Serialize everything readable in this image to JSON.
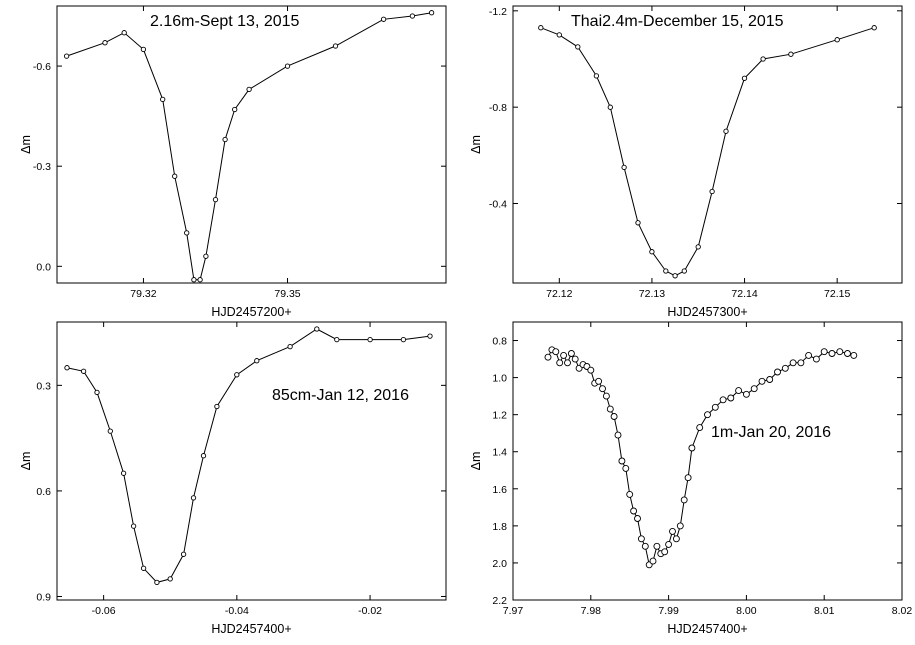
{
  "chart_data": [
    {
      "type": "scatter",
      "title": "",
      "annotation": "2.16m-Sept 13, 2015",
      "xlabel": "HJD2457200+",
      "ylabel": "Δm",
      "xlim": [
        79.302,
        79.383
      ],
      "ylim": [
        0.05,
        -0.78
      ],
      "y_inverted": true,
      "xticks": [
        79.32,
        79.35
      ],
      "xtick_labels": [
        "79.32",
        "79.35"
      ],
      "yticks": [
        0.0,
        -0.3,
        -0.6
      ],
      "ytick_labels": [
        "0.0",
        "-0.3",
        "-0.6"
      ],
      "grid": false,
      "x": [
        79.304,
        79.312,
        79.316,
        79.32,
        79.324,
        79.3265,
        79.329,
        79.3305,
        79.3318,
        79.333,
        79.335,
        79.337,
        79.339,
        79.342,
        79.35,
        79.36,
        79.37,
        79.376,
        79.38
      ],
      "y": [
        -0.63,
        -0.67,
        -0.7,
        -0.65,
        -0.5,
        -0.27,
        -0.1,
        0.04,
        0.04,
        -0.03,
        -0.2,
        -0.38,
        -0.47,
        -0.53,
        -0.6,
        -0.66,
        -0.74,
        -0.75,
        -0.76
      ]
    },
    {
      "type": "scatter",
      "title": "",
      "annotation": "Thai2.4m-December 15, 2015",
      "xlabel": "HJD2457300+",
      "ylabel": "Δm",
      "xlim": [
        72.115,
        72.157
      ],
      "ylim": [
        -0.07,
        -1.22
      ],
      "y_inverted": true,
      "xticks": [
        72.12,
        72.13,
        72.14,
        72.15
      ],
      "xtick_labels": [
        "72.12",
        "72.13",
        "72.14",
        "72.15"
      ],
      "yticks": [
        -1.2,
        -0.8,
        -0.4
      ],
      "ytick_labels": [
        "-1.2",
        "-0.8",
        "-0.4"
      ],
      "grid": false,
      "x": [
        72.118,
        72.12,
        72.122,
        72.124,
        72.1255,
        72.127,
        72.1285,
        72.13,
        72.1315,
        72.1325,
        72.1335,
        72.135,
        72.1365,
        72.138,
        72.14,
        72.142,
        72.145,
        72.15,
        72.154
      ],
      "y": [
        -1.13,
        -1.1,
        -1.05,
        -0.93,
        -0.8,
        -0.55,
        -0.32,
        -0.2,
        -0.12,
        -0.1,
        -0.12,
        -0.22,
        -0.45,
        -0.7,
        -0.92,
        -1.0,
        -1.02,
        -1.08,
        -1.13
      ]
    },
    {
      "type": "scatter",
      "title": "",
      "annotation": "85cm-Jan 12, 2016",
      "xlabel": "HJD2457400+",
      "ylabel": "Δm",
      "xlim": [
        -0.067,
        -0.0086
      ],
      "ylim": [
        0.91,
        0.12
      ],
      "y_inverted": true,
      "xticks": [
        -0.06,
        -0.04,
        -0.02
      ],
      "xtick_labels": [
        "-0.06",
        "-0.04",
        "-0.02"
      ],
      "yticks": [
        0.3,
        0.6,
        0.9
      ],
      "ytick_labels": [
        "0.3",
        "0.6",
        "0.9"
      ],
      "grid": false,
      "x": [
        -0.0655,
        -0.063,
        -0.061,
        -0.059,
        -0.057,
        -0.0555,
        -0.054,
        -0.052,
        -0.05,
        -0.048,
        -0.0465,
        -0.045,
        -0.043,
        -0.04,
        -0.037,
        -0.032,
        -0.028,
        -0.025,
        -0.02,
        -0.015,
        -0.011
      ],
      "y": [
        0.25,
        0.26,
        0.32,
        0.43,
        0.55,
        0.7,
        0.82,
        0.86,
        0.85,
        0.78,
        0.62,
        0.5,
        0.36,
        0.27,
        0.23,
        0.19,
        0.14,
        0.17,
        0.17,
        0.17,
        0.16
      ]
    },
    {
      "type": "scatter",
      "title": "",
      "annotation": "1m-Jan 20, 2016",
      "xlabel": "HJD2457400+",
      "ylabel": "Δm",
      "xlim": [
        7.97,
        8.02
      ],
      "ylim": [
        2.2,
        0.7
      ],
      "y_inverted": true,
      "xticks": [
        7.97,
        7.98,
        7.99,
        8.0,
        8.01,
        8.02
      ],
      "xtick_labels": [
        "7.97",
        "7.98",
        "7.99",
        "8.00",
        "8.01",
        "8.02"
      ],
      "yticks": [
        0.8,
        1.0,
        1.2,
        1.4,
        1.6,
        1.8,
        2.0,
        2.2
      ],
      "ytick_labels": [
        "0.8",
        "1.0",
        "1.2",
        "1.4",
        "1.6",
        "1.8",
        "2.0",
        "2.2"
      ],
      "grid": false,
      "x": [
        7.9745,
        7.975,
        7.9755,
        7.976,
        7.9765,
        7.977,
        7.9775,
        7.978,
        7.9785,
        7.979,
        7.9795,
        7.98,
        7.9805,
        7.981,
        7.9815,
        7.982,
        7.9825,
        7.983,
        7.9835,
        7.984,
        7.9845,
        7.985,
        7.9855,
        7.986,
        7.9865,
        7.987,
        7.9875,
        7.988,
        7.9885,
        7.989,
        7.9895,
        7.99,
        7.9905,
        7.991,
        7.9915,
        7.992,
        7.9925,
        7.993,
        7.994,
        7.995,
        7.996,
        7.997,
        7.998,
        7.999,
        8.0,
        8.001,
        8.002,
        8.003,
        8.004,
        8.005,
        8.006,
        8.007,
        8.008,
        8.009,
        8.01,
        8.011,
        8.012,
        8.013,
        8.0138
      ],
      "y": [
        0.89,
        0.85,
        0.86,
        0.92,
        0.88,
        0.92,
        0.87,
        0.9,
        0.95,
        0.93,
        0.94,
        0.96,
        1.03,
        1.02,
        1.06,
        1.1,
        1.17,
        1.21,
        1.31,
        1.45,
        1.49,
        1.63,
        1.72,
        1.76,
        1.87,
        1.91,
        2.01,
        1.99,
        1.91,
        1.95,
        1.94,
        1.9,
        1.83,
        1.87,
        1.8,
        1.66,
        1.54,
        1.38,
        1.27,
        1.2,
        1.16,
        1.12,
        1.11,
        1.07,
        1.09,
        1.06,
        1.02,
        1.01,
        0.97,
        0.95,
        0.92,
        0.92,
        0.88,
        0.9,
        0.86,
        0.87,
        0.86,
        0.87,
        0.88
      ]
    }
  ]
}
